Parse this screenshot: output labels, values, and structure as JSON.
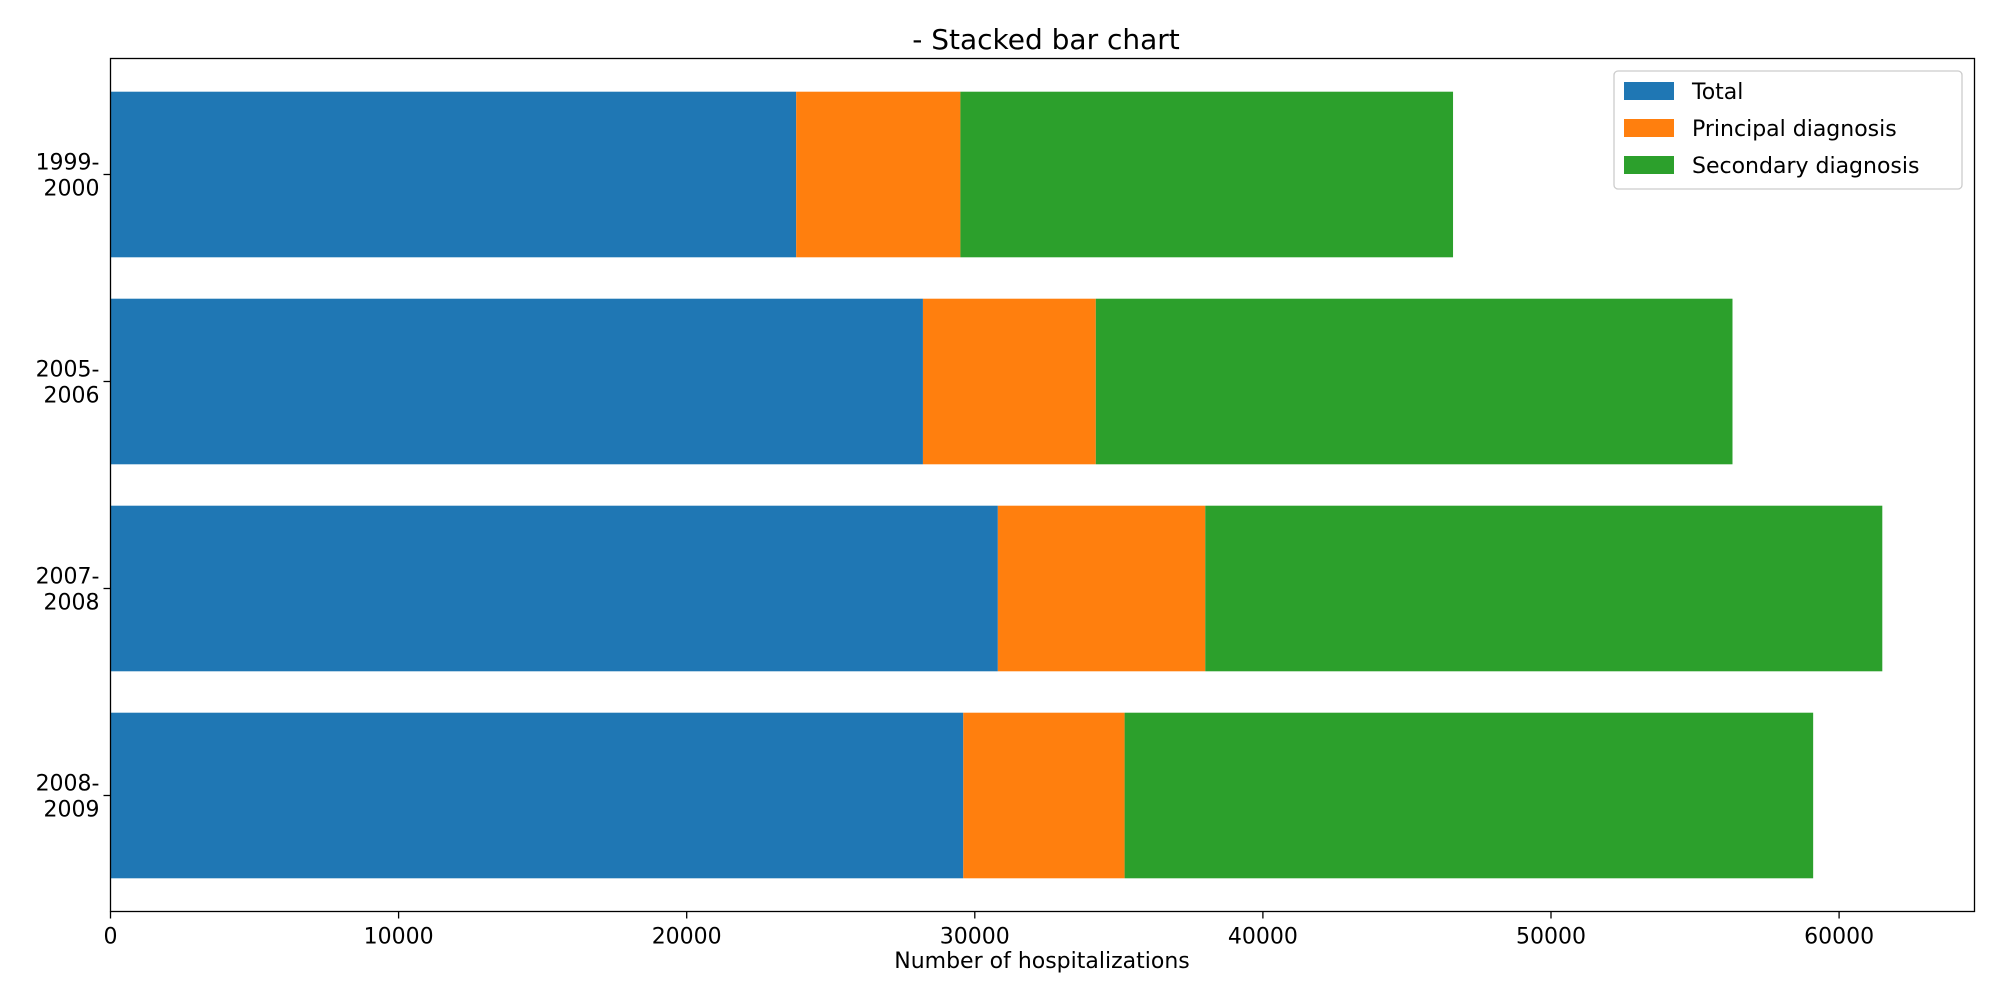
{
  "chart_data": {
    "type": "bar",
    "orientation": "horizontal",
    "stacked": true,
    "title": "- Stacked bar chart",
    "xlabel": "Number of hospitalizations",
    "ylabel": "",
    "categories": [
      [
        "1999-",
        "2000"
      ],
      [
        "2005-",
        "2006"
      ],
      [
        "2007-",
        "2008"
      ],
      [
        "2008-",
        "2009"
      ]
    ],
    "series": [
      {
        "name": "Total",
        "color": "#1f77b4",
        "values": [
          23800,
          28200,
          30800,
          29600
        ]
      },
      {
        "name": "Principal diagnosis",
        "color": "#ff7f0e",
        "values": [
          5700,
          6000,
          7200,
          5600
        ]
      },
      {
        "name": "Secondary diagnosis",
        "color": "#2ca02c",
        "values": [
          17100,
          22100,
          23500,
          23900
        ]
      }
    ],
    "xlim": [
      0,
      64700
    ],
    "xticks": [
      0,
      10000,
      20000,
      30000,
      40000,
      50000,
      60000
    ],
    "grid": false,
    "legend_position": "top-right"
  }
}
